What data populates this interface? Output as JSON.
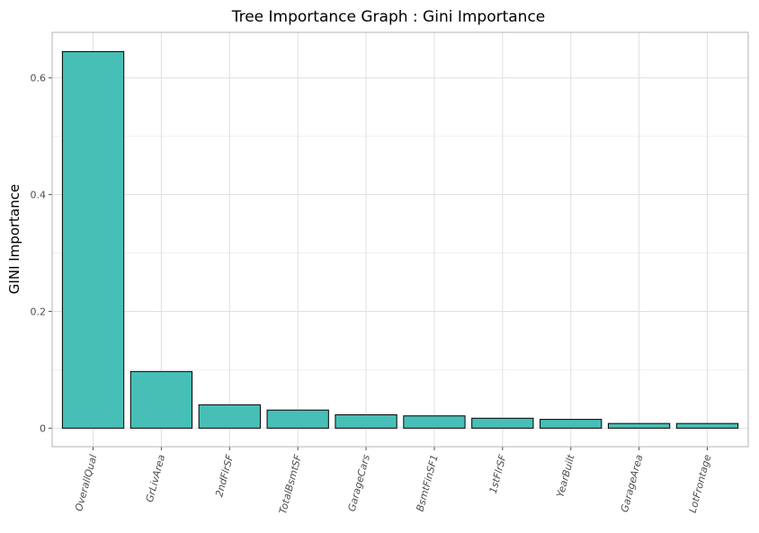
{
  "chart_data": {
    "type": "bar",
    "title": "Tree Importance Graph : Gini Importance",
    "xlabel": "",
    "ylabel": "GINI Importance",
    "categories": [
      "OverallQual",
      "GrLivArea",
      "2ndFlrSF",
      "TotalBsmtSF",
      "GarageCars",
      "BsmtFinSF1",
      "1stFlrSF",
      "YearBuilt",
      "GarageArea",
      "LotFrontage"
    ],
    "values": [
      0.645,
      0.097,
      0.04,
      0.031,
      0.023,
      0.021,
      0.017,
      0.015,
      0.008,
      0.008
    ],
    "ylim": [
      -0.0318,
      0.678
    ],
    "yticks": [
      0,
      0.2,
      0.4,
      0.6
    ],
    "ytick_labels": [
      "0",
      "0.2",
      "0.4",
      "0.6"
    ],
    "bar_color": "#48bfb6",
    "bar_edge_color": "#000000",
    "grid": true,
    "legend": "none"
  }
}
